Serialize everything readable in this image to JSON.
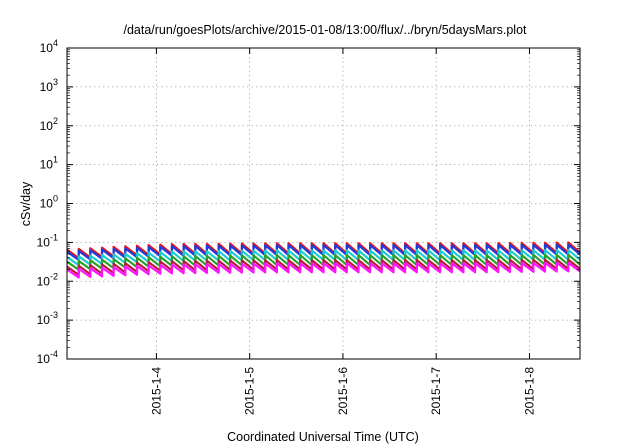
{
  "chart_data": {
    "type": "line",
    "title": "/data/run/goesPlots/archive/2015-01-08/13:00/flux/../bryn/5daysMars.plot",
    "xlabel": "Coordinated Universal Time (UTC)",
    "ylabel": "cSv/day",
    "y_scale": "log",
    "ylim": [
      0.0001,
      10000
    ],
    "xlim": [
      "2015-01-03 01:00",
      "2015-01-08 13:00"
    ],
    "x_ticks": [
      "2015-1-4",
      "2015-1-5",
      "2015-1-6",
      "2015-1-7",
      "2015-1-8"
    ],
    "y_ticks": [
      {
        "base": "10",
        "exp": "-4"
      },
      {
        "base": "10",
        "exp": "-3"
      },
      {
        "base": "10",
        "exp": "-2"
      },
      {
        "base": "10",
        "exp": "-1"
      },
      {
        "base": "10",
        "exp": "0"
      },
      {
        "base": "10",
        "exp": "1"
      },
      {
        "base": "10",
        "exp": "2"
      },
      {
        "base": "10",
        "exp": "3"
      },
      {
        "base": "10",
        "exp": "4"
      }
    ],
    "grid": true,
    "period_hours": 3,
    "series": [
      {
        "color": "#e8141e",
        "peak": [
          0.065,
          0.09,
          0.095,
          0.095,
          0.095,
          0.1
        ],
        "trough": [
          0.038,
          0.05,
          0.052,
          0.052,
          0.052,
          0.055
        ]
      },
      {
        "color": "#1e3cdc",
        "peak": [
          0.058,
          0.08,
          0.085,
          0.085,
          0.085,
          0.088
        ],
        "trough": [
          0.034,
          0.045,
          0.047,
          0.047,
          0.047,
          0.049
        ]
      },
      {
        "color": "#1ecbd2",
        "peak": [
          0.042,
          0.058,
          0.062,
          0.062,
          0.062,
          0.064
        ],
        "trough": [
          0.025,
          0.033,
          0.035,
          0.035,
          0.035,
          0.036
        ]
      },
      {
        "color": "#2aa02a",
        "peak": [
          0.032,
          0.044,
          0.047,
          0.047,
          0.047,
          0.048
        ],
        "trough": [
          0.019,
          0.025,
          0.026,
          0.026,
          0.026,
          0.027
        ]
      },
      {
        "color": "#b41e3c",
        "peak": [
          0.024,
          0.033,
          0.035,
          0.035,
          0.035,
          0.036
        ],
        "trough": [
          0.014,
          0.019,
          0.02,
          0.02,
          0.02,
          0.021
        ]
      },
      {
        "color": "#ff14ff",
        "peak": [
          0.02,
          0.027,
          0.029,
          0.029,
          0.029,
          0.03
        ],
        "trough": [
          0.012,
          0.016,
          0.017,
          0.017,
          0.017,
          0.018
        ]
      }
    ]
  }
}
